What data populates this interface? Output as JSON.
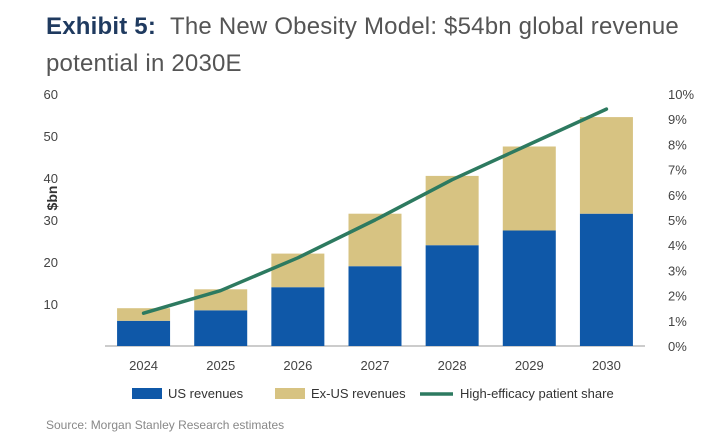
{
  "header": {
    "exhibit": "Exhibit 5:",
    "title": "The New Obesity Model: $54bn global revenue potential in 2030E"
  },
  "source": "Source: Morgan Stanley Research estimates",
  "colors": {
    "us": "#0f58a8",
    "exus": "#d7c382",
    "line": "#2d7a60",
    "axis": "#999999"
  },
  "chart_data": {
    "type": "bar",
    "stacked": true,
    "categories": [
      "2024",
      "2025",
      "2026",
      "2027",
      "2028",
      "2029",
      "2030"
    ],
    "series": [
      {
        "name": "US revenues",
        "type": "bar",
        "axis": "left",
        "values": [
          6,
          8.5,
          14,
          19,
          24,
          27.5,
          31.5
        ]
      },
      {
        "name": "Ex-US revenues",
        "type": "bar",
        "axis": "left",
        "values": [
          3,
          5,
          8,
          12.5,
          16.5,
          20,
          23
        ]
      },
      {
        "name": "High-efficacy patient share",
        "type": "line",
        "axis": "right",
        "values": [
          1.3,
          2.2,
          3.5,
          5.0,
          6.6,
          8.0,
          9.4
        ]
      }
    ],
    "ylabel": "$bn",
    "ylim": [
      0,
      60
    ],
    "yticks": [
      "10",
      "20",
      "30",
      "40",
      "50",
      "60"
    ],
    "y2lim": [
      0,
      10
    ],
    "y2ticks": [
      "0%",
      "1%",
      "2%",
      "3%",
      "4%",
      "5%",
      "6%",
      "7%",
      "8%",
      "9%",
      "10%"
    ],
    "legend_position": "bottom",
    "grid": false
  }
}
